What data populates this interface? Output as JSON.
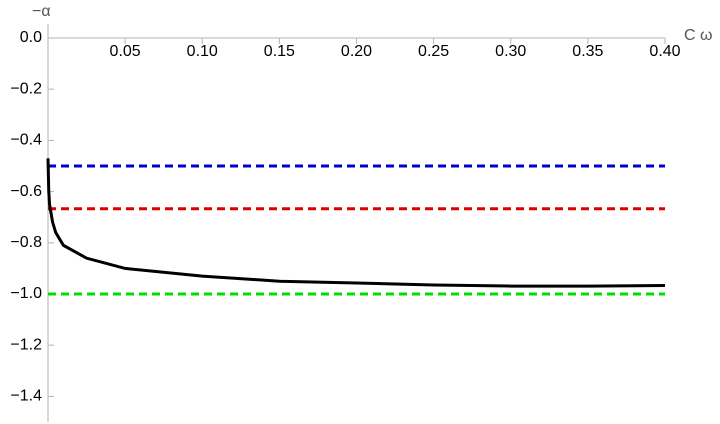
{
  "chart_data": {
    "type": "line",
    "x_label": "C ω",
    "y_label": "−α",
    "xlim": [
      0,
      0.4
    ],
    "ylim": [
      -1.5,
      0
    ],
    "xticks": [
      0.05,
      {
        "value": 0.1,
        "label": "0.10"
      },
      0.15,
      {
        "value": 0.2,
        "label": "0.20"
      },
      0.25,
      {
        "value": 0.3,
        "label": "0.30"
      },
      0.35,
      {
        "value": 0.4,
        "label": "0.40"
      }
    ],
    "yticks": [
      {
        "value": 0,
        "label": "0.0"
      },
      {
        "value": -0.2,
        "label": "−0.2"
      },
      {
        "value": -0.4,
        "label": "−0.4"
      },
      {
        "value": -0.6,
        "label": "−0.6"
      },
      {
        "value": -0.8,
        "label": "−0.8"
      },
      {
        "value": -1.0,
        "label": "−1.0"
      },
      {
        "value": -1.2,
        "label": "−1.2"
      },
      {
        "value": -1.4,
        "label": "−1.4"
      }
    ],
    "series": [
      {
        "color": "#0000cc",
        "dashed": true,
        "x": [
          0,
          0.4
        ],
        "values": [
          -0.5,
          -0.5
        ]
      },
      {
        "color": "#dd0000",
        "dashed": true,
        "x": [
          0,
          0.4
        ],
        "values": [
          -0.667,
          -0.667
        ]
      },
      {
        "color": "#00dd00",
        "dashed": true,
        "x": [
          0,
          0.4
        ],
        "values": [
          -1.0,
          -1.0
        ]
      },
      {
        "color": "#000000",
        "dashed": false,
        "x": [
          0,
          0.0005,
          0.001,
          0.003,
          0.005,
          0.01,
          0.025,
          0.05,
          0.1,
          0.15,
          0.2,
          0.25,
          0.3,
          0.35,
          0.4
        ],
        "values": [
          -0.47,
          -0.6,
          -0.65,
          -0.72,
          -0.76,
          -0.81,
          -0.86,
          -0.9,
          -0.93,
          -0.95,
          -0.957,
          -0.965,
          -0.969,
          -0.969,
          -0.967
        ]
      }
    ]
  }
}
